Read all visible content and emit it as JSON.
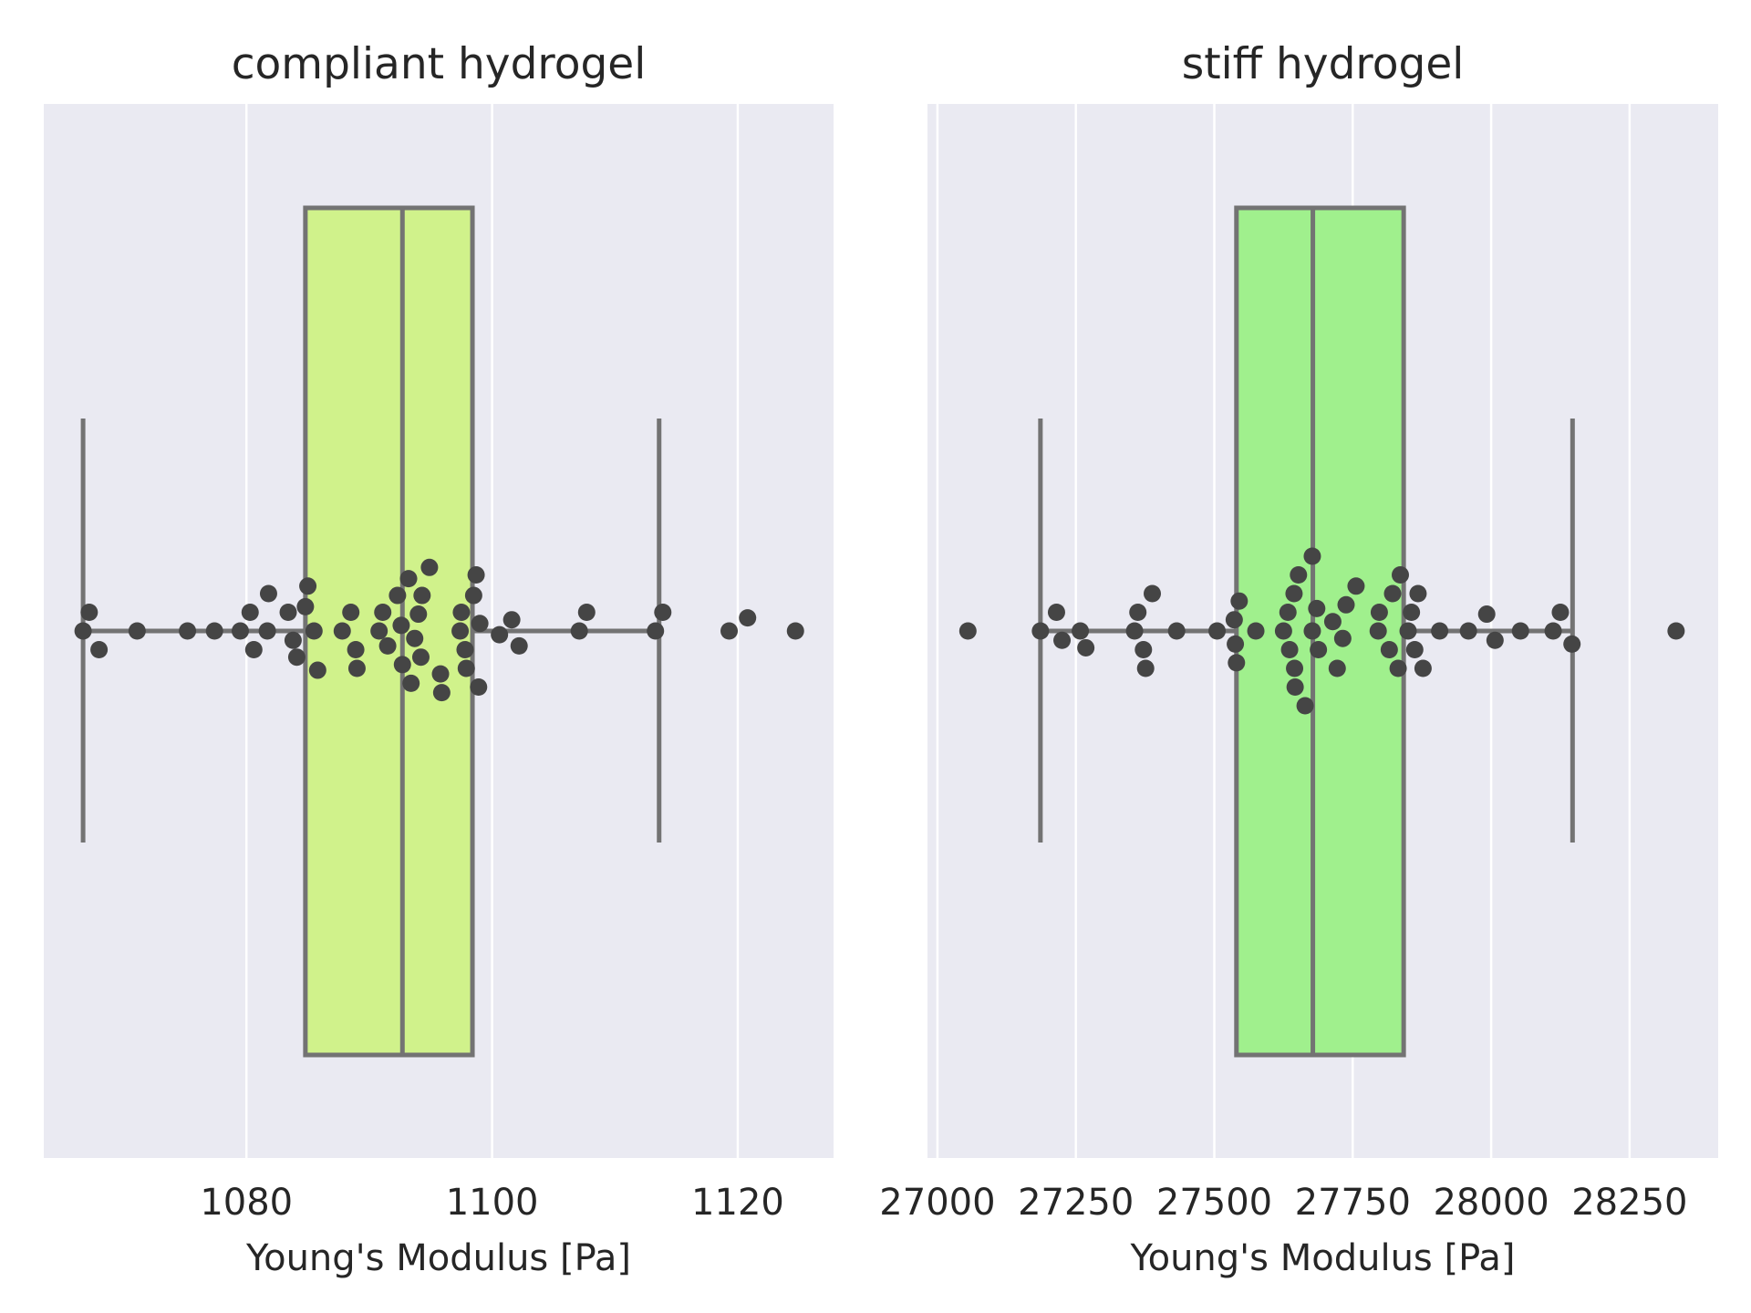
{
  "colors": {
    "background": "#ffffff",
    "axes_face": "#eaeaf2",
    "grid": "#ffffff",
    "box_line": "#737373",
    "point": "#454545"
  },
  "chart_data": [
    {
      "type": "box-swarm",
      "orientation": "horizontal",
      "title": "compliant hydrogel",
      "xlabel": "Young's Modulus [Pa]",
      "xlim": [
        1063.5,
        1127.8
      ],
      "xticks": [
        1080,
        1100,
        1120
      ],
      "xtick_labels": [
        "1080",
        "1100",
        "1120"
      ],
      "grid": true,
      "box_color": "#d0f28b",
      "box": {
        "whisker_low": 1066.7,
        "q1": 1084.8,
        "median": 1092.7,
        "q3": 1098.4,
        "whisker_high": 1113.6
      },
      "points": [
        {
          "x": 1066.7,
          "dy": 0
        },
        {
          "x": 1067.2,
          "dy": -1
        },
        {
          "x": 1068.0,
          "dy": 1
        },
        {
          "x": 1071.1,
          "dy": 0
        },
        {
          "x": 1075.2,
          "dy": 0
        },
        {
          "x": 1077.4,
          "dy": 0
        },
        {
          "x": 1079.5,
          "dy": 0
        },
        {
          "x": 1080.3,
          "dy": -1
        },
        {
          "x": 1080.6,
          "dy": 1
        },
        {
          "x": 1081.7,
          "dy": 0
        },
        {
          "x": 1081.8,
          "dy": -2
        },
        {
          "x": 1083.4,
          "dy": -1
        },
        {
          "x": 1083.8,
          "dy": 0.5
        },
        {
          "x": 1084.1,
          "dy": 1.4
        },
        {
          "x": 1084.8,
          "dy": -1.3
        },
        {
          "x": 1085.0,
          "dy": -2.4
        },
        {
          "x": 1085.5,
          "dy": 0
        },
        {
          "x": 1085.8,
          "dy": 2.1
        },
        {
          "x": 1087.8,
          "dy": 0
        },
        {
          "x": 1088.5,
          "dy": -1
        },
        {
          "x": 1088.9,
          "dy": 1
        },
        {
          "x": 1089.0,
          "dy": 2
        },
        {
          "x": 1090.8,
          "dy": 0
        },
        {
          "x": 1091.1,
          "dy": -1
        },
        {
          "x": 1091.5,
          "dy": 0.8
        },
        {
          "x": 1092.3,
          "dy": -1.9
        },
        {
          "x": 1092.6,
          "dy": -0.3
        },
        {
          "x": 1092.7,
          "dy": 1.8
        },
        {
          "x": 1093.2,
          "dy": -2.8
        },
        {
          "x": 1093.4,
          "dy": 2.8
        },
        {
          "x": 1093.7,
          "dy": 0.4
        },
        {
          "x": 1094.0,
          "dy": -0.9
        },
        {
          "x": 1094.2,
          "dy": 1.4
        },
        {
          "x": 1094.3,
          "dy": -1.9
        },
        {
          "x": 1094.9,
          "dy": -3.4
        },
        {
          "x": 1095.8,
          "dy": 2.3
        },
        {
          "x": 1095.9,
          "dy": 3.3
        },
        {
          "x": 1097.4,
          "dy": 0
        },
        {
          "x": 1097.5,
          "dy": -1
        },
        {
          "x": 1097.8,
          "dy": 1
        },
        {
          "x": 1097.9,
          "dy": 2
        },
        {
          "x": 1098.5,
          "dy": -1.9
        },
        {
          "x": 1098.7,
          "dy": -3.0
        },
        {
          "x": 1098.9,
          "dy": 3.0
        },
        {
          "x": 1099.0,
          "dy": -0.4
        },
        {
          "x": 1100.6,
          "dy": 0.2
        },
        {
          "x": 1101.6,
          "dy": -0.6
        },
        {
          "x": 1102.2,
          "dy": 0.8
        },
        {
          "x": 1107.1,
          "dy": 0
        },
        {
          "x": 1107.7,
          "dy": -1
        },
        {
          "x": 1113.3,
          "dy": 0
        },
        {
          "x": 1113.9,
          "dy": -1
        },
        {
          "x": 1119.3,
          "dy": 0
        },
        {
          "x": 1120.8,
          "dy": -0.7
        },
        {
          "x": 1124.7,
          "dy": 0
        }
      ]
    },
    {
      "type": "box-swarm",
      "orientation": "horizontal",
      "title": "stiff hydrogel",
      "xlabel": "Young's Modulus [Pa]",
      "xlim": [
        26982,
        28410
      ],
      "xticks": [
        27000,
        27250,
        27500,
        27750,
        28000,
        28250
      ],
      "xtick_labels": [
        "27000",
        "27250",
        "27500",
        "27750",
        "28000",
        "28250"
      ],
      "grid": true,
      "box_color": "#a0f08d",
      "box": {
        "whisker_low": 27186,
        "q1": 27540,
        "median": 27678,
        "q3": 27842,
        "whisker_high": 28147
      },
      "points": [
        {
          "x": 27055,
          "dy": 0
        },
        {
          "x": 27186,
          "dy": 0
        },
        {
          "x": 27215,
          "dy": -1
        },
        {
          "x": 27225,
          "dy": 0.5
        },
        {
          "x": 27258,
          "dy": 0
        },
        {
          "x": 27268,
          "dy": 0.9
        },
        {
          "x": 27356,
          "dy": 0
        },
        {
          "x": 27362,
          "dy": -1
        },
        {
          "x": 27372,
          "dy": 1
        },
        {
          "x": 27376,
          "dy": 2
        },
        {
          "x": 27388,
          "dy": -2
        },
        {
          "x": 27432,
          "dy": 0
        },
        {
          "x": 27505,
          "dy": 0
        },
        {
          "x": 27536,
          "dy": -0.6
        },
        {
          "x": 27538,
          "dy": 0.7
        },
        {
          "x": 27540,
          "dy": 1.7
        },
        {
          "x": 27545,
          "dy": -1.6
        },
        {
          "x": 27575,
          "dy": 0
        },
        {
          "x": 27625,
          "dy": 0
        },
        {
          "x": 27633,
          "dy": -1
        },
        {
          "x": 27636,
          "dy": 1
        },
        {
          "x": 27644,
          "dy": -2
        },
        {
          "x": 27645,
          "dy": 2
        },
        {
          "x": 27646,
          "dy": 3
        },
        {
          "x": 27652,
          "dy": -3
        },
        {
          "x": 27664,
          "dy": 4
        },
        {
          "x": 27677,
          "dy": 0
        },
        {
          "x": 27677,
          "dy": -4
        },
        {
          "x": 27685,
          "dy": -1.2
        },
        {
          "x": 27688,
          "dy": 1.0
        },
        {
          "x": 27714,
          "dy": -0.5
        },
        {
          "x": 27722,
          "dy": 2.0
        },
        {
          "x": 27732,
          "dy": 0.4
        },
        {
          "x": 27738,
          "dy": -1.4
        },
        {
          "x": 27756,
          "dy": -2.4
        },
        {
          "x": 27796,
          "dy": 0
        },
        {
          "x": 27798,
          "dy": -1
        },
        {
          "x": 27816,
          "dy": 1
        },
        {
          "x": 27822,
          "dy": -2
        },
        {
          "x": 27832,
          "dy": 2
        },
        {
          "x": 27836,
          "dy": -3
        },
        {
          "x": 27850,
          "dy": 0
        },
        {
          "x": 27856,
          "dy": -1
        },
        {
          "x": 27862,
          "dy": 1
        },
        {
          "x": 27868,
          "dy": -2
        },
        {
          "x": 27877,
          "dy": 2
        },
        {
          "x": 27907,
          "dy": 0
        },
        {
          "x": 27959,
          "dy": 0
        },
        {
          "x": 27992,
          "dy": -0.9
        },
        {
          "x": 28007,
          "dy": 0.5
        },
        {
          "x": 28053,
          "dy": 0
        },
        {
          "x": 28112,
          "dy": 0
        },
        {
          "x": 28125,
          "dy": -1
        },
        {
          "x": 28146,
          "dy": 0.7
        },
        {
          "x": 28334,
          "dy": 0
        }
      ]
    }
  ]
}
